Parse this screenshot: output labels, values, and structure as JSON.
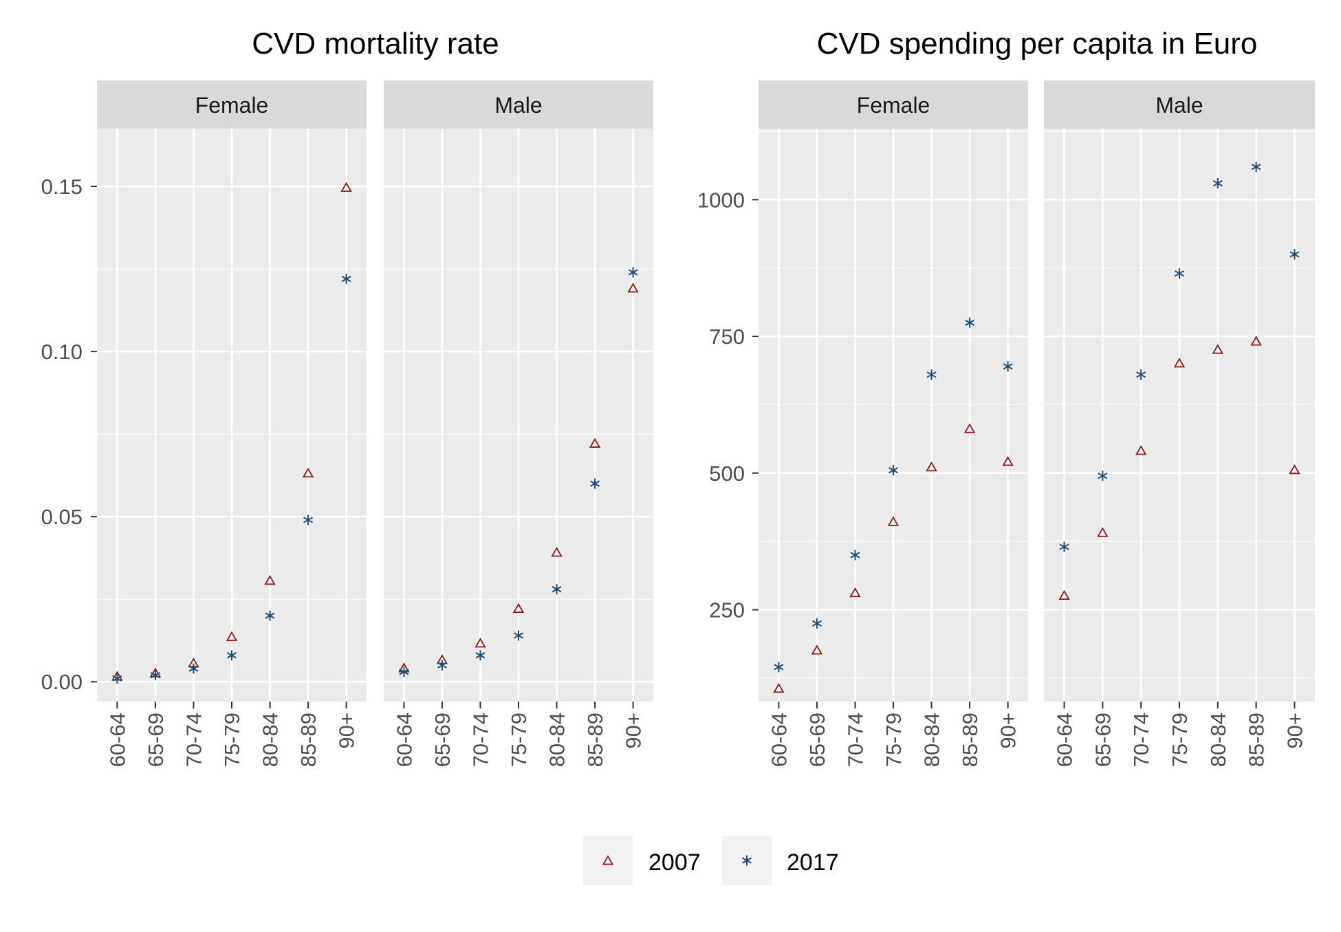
{
  "legend": {
    "position": "bottom",
    "items": [
      {
        "label": "2007",
        "color": "#8B1A1A",
        "shape": "triangle-open"
      },
      {
        "label": "2017",
        "color": "#1F4E79",
        "shape": "asterisk"
      }
    ]
  },
  "chart_data": [
    {
      "type": "scatter",
      "title": "CVD mortality rate",
      "categories": [
        "60-64",
        "65-69",
        "70-74",
        "75-79",
        "80-84",
        "85-89",
        "90+"
      ],
      "ylim": [
        -0.006,
        0.1675
      ],
      "yticks": [
        0.0,
        0.05,
        0.1,
        0.15
      ],
      "ytick_labels": [
        "0.00",
        "0.05",
        "0.10",
        "0.15"
      ],
      "grid": true,
      "facets": [
        {
          "label": "Female",
          "series": [
            {
              "name": "2007",
              "values": [
                0.0015,
                0.0025,
                0.0055,
                0.0135,
                0.0305,
                0.063,
                0.1495
              ]
            },
            {
              "name": "2017",
              "values": [
                0.001,
                0.002,
                0.004,
                0.008,
                0.02,
                0.049,
                0.122
              ]
            }
          ]
        },
        {
          "label": "Male",
          "series": [
            {
              "name": "2007",
              "values": [
                0.004,
                0.0065,
                0.0115,
                0.022,
                0.039,
                0.072,
                0.119
              ]
            },
            {
              "name": "2017",
              "values": [
                0.003,
                0.005,
                0.008,
                0.014,
                0.028,
                0.06,
                0.124
              ]
            }
          ]
        }
      ]
    },
    {
      "type": "scatter",
      "title": "CVD spending per capita in Euro",
      "categories": [
        "60-64",
        "65-69",
        "70-74",
        "75-79",
        "80-84",
        "85-89",
        "90+"
      ],
      "ylim": [
        82,
        1130
      ],
      "yticks": [
        250,
        500,
        750,
        1000
      ],
      "ytick_labels": [
        "250",
        "500",
        "750",
        "1000"
      ],
      "minor_yticks": [
        125,
        375,
        625,
        875,
        1125
      ],
      "grid": true,
      "facets": [
        {
          "label": "Female",
          "series": [
            {
              "name": "2007",
              "values": [
                105,
                175,
                280,
                410,
                510,
                580,
                520
              ]
            },
            {
              "name": "2017",
              "values": [
                145,
                225,
                350,
                505,
                680,
                775,
                695
              ]
            }
          ]
        },
        {
          "label": "Male",
          "series": [
            {
              "name": "2007",
              "values": [
                275,
                390,
                540,
                700,
                725,
                740,
                505
              ]
            },
            {
              "name": "2017",
              "values": [
                365,
                495,
                680,
                865,
                1030,
                1060,
                900
              ]
            }
          ]
        }
      ]
    }
  ]
}
